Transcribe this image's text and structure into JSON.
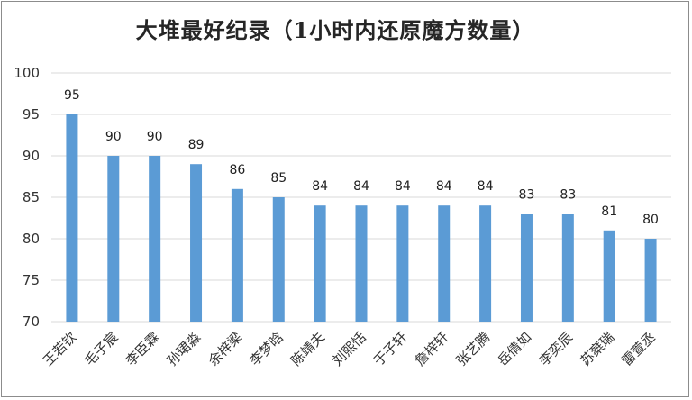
{
  "chart_data": {
    "type": "bar",
    "title": "大堆最好纪录（1小时内还原魔方数量）",
    "xlabel": "",
    "ylabel": "",
    "categories": [
      "王若钦",
      "毛子宸",
      "李臣霖",
      "孙珺淼",
      "余梓梁",
      "李梦晗",
      "陈靖夫",
      "刘熙恬",
      "于子轩",
      "詹梓轩",
      "张艺腾",
      "岳倩如",
      "李奕辰",
      "苏椉瑞",
      "雷萱丞"
    ],
    "values": [
      95,
      90,
      90,
      89,
      86,
      85,
      84,
      84,
      84,
      84,
      84,
      83,
      83,
      81,
      80
    ],
    "ylim": [
      70,
      100
    ],
    "yticks": [
      70,
      75,
      80,
      85,
      90,
      95,
      100
    ],
    "grid": true,
    "legend": "none",
    "bar_color": "#5b9bd5",
    "grid_color": "#d9d9d9"
  }
}
